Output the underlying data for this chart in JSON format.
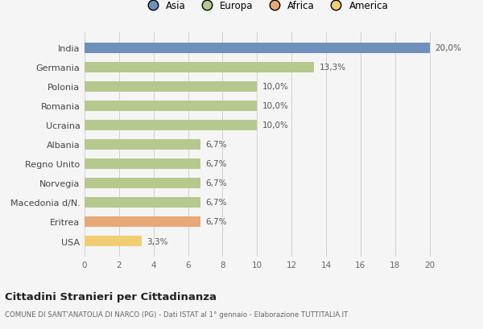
{
  "categories": [
    "India",
    "Germania",
    "Polonia",
    "Romania",
    "Ucraina",
    "Albania",
    "Regno Unito",
    "Norvegia",
    "Macedonia d/N.",
    "Eritrea",
    "USA"
  ],
  "values": [
    20.0,
    13.3,
    10.0,
    10.0,
    10.0,
    6.7,
    6.7,
    6.7,
    6.7,
    6.7,
    3.3
  ],
  "labels": [
    "20,0%",
    "13,3%",
    "10,0%",
    "10,0%",
    "10,0%",
    "6,7%",
    "6,7%",
    "6,7%",
    "6,7%",
    "6,7%",
    "3,3%"
  ],
  "colors": [
    "#7090bc",
    "#b5c98e",
    "#b5c98e",
    "#b5c98e",
    "#b5c98e",
    "#b5c98e",
    "#b5c98e",
    "#b5c98e",
    "#b5c98e",
    "#e8a878",
    "#f2ce72"
  ],
  "legend_labels": [
    "Asia",
    "Europa",
    "Africa",
    "America"
  ],
  "legend_colors": [
    "#7090bc",
    "#b5c98e",
    "#e8a878",
    "#f2ce72"
  ],
  "xlim": [
    0,
    21
  ],
  "xticks": [
    0,
    2,
    4,
    6,
    8,
    10,
    12,
    14,
    16,
    18,
    20
  ],
  "title": "Cittadini Stranieri per Cittadinanza",
  "subtitle": "COMUNE DI SANT'ANATOLIA DI NARCO (PG) - Dati ISTAT al 1° gennaio - Elaborazione TUTTITALIA.IT",
  "bg_color": "#f5f5f5",
  "bar_height": 0.55
}
